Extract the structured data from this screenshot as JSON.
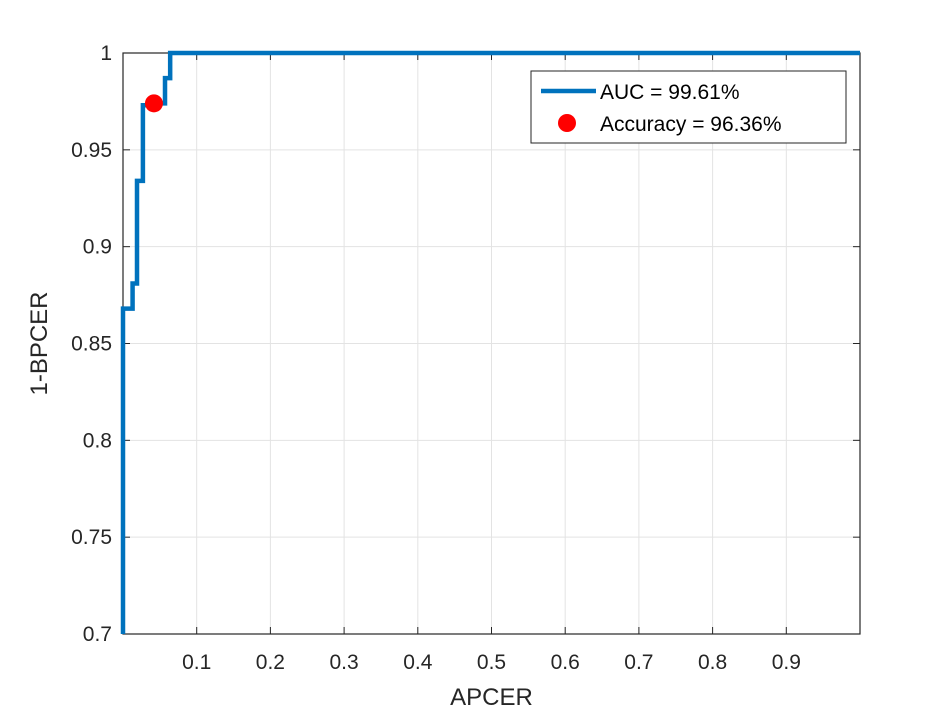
{
  "chart_data": {
    "type": "line",
    "xlabel": "APCER",
    "ylabel": "1-BPCER",
    "xlim": [
      0,
      1
    ],
    "ylim": [
      0.7,
      1
    ],
    "grid": true,
    "legend_position": "top-right",
    "x_ticks": [
      0.1,
      0.2,
      0.3,
      0.4,
      0.5,
      0.6,
      0.7,
      0.8,
      0.9
    ],
    "x_tick_labels": [
      "0.1",
      "0.2",
      "0.3",
      "0.4",
      "0.5",
      "0.6",
      "0.7",
      "0.8",
      "0.9"
    ],
    "y_ticks": [
      0.7,
      0.75,
      0.8,
      0.85,
      0.9,
      0.95,
      1
    ],
    "y_tick_labels": [
      "0.7",
      "0.75",
      "0.8",
      "0.85",
      "0.9",
      "0.95",
      "1"
    ],
    "series": [
      {
        "name": "AUC = 99.61%",
        "kind": "line",
        "color": "#0072BD",
        "x": [
          0,
          0,
          0.013,
          0.013,
          0.019,
          0.019,
          0.027,
          0.027,
          0.045,
          0.045,
          0.057,
          0.057,
          0.064,
          0.064,
          1.0
        ],
        "y": [
          0.7,
          0.868,
          0.868,
          0.881,
          0.881,
          0.934,
          0.934,
          0.973,
          0.973,
          0.974,
          0.974,
          0.987,
          0.987,
          1.0,
          1.0
        ]
      },
      {
        "name": "Accuracy = 96.36%",
        "kind": "point",
        "color": "#FF0000",
        "x": [
          0.042
        ],
        "y": [
          0.974
        ]
      }
    ]
  }
}
